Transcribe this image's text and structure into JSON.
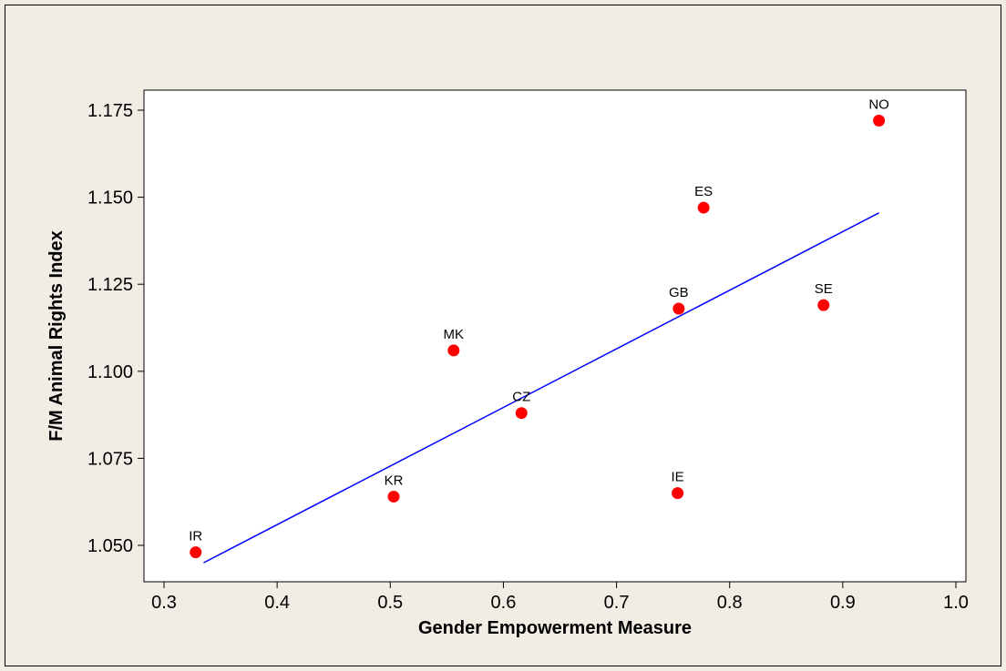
{
  "chart_data": {
    "type": "scatter",
    "title": "",
    "xlabel": "Gender Empowerment Measure",
    "ylabel": "F/M Animal Rights Index",
    "xlim": [
      0.3,
      1.0
    ],
    "ylim": [
      1.04,
      1.18
    ],
    "x_ticks": [
      0.3,
      0.4,
      0.5,
      0.6,
      0.7,
      0.8,
      0.9,
      1.0
    ],
    "x_tick_labels": [
      "0.3",
      "0.4",
      "0.5",
      "0.6",
      "0.7",
      "0.8",
      "0.9",
      "1.0"
    ],
    "y_ticks": [
      1.05,
      1.075,
      1.1,
      1.125,
      1.15,
      1.175
    ],
    "y_tick_labels": [
      "1.050",
      "1.075",
      "1.100",
      "1.125",
      "1.150",
      "1.175"
    ],
    "grid": false,
    "point_color": "#ff0000",
    "line_color": "#0000ff",
    "points": [
      {
        "label": "IR",
        "x": 0.328,
        "y": 1.048
      },
      {
        "label": "KR",
        "x": 0.503,
        "y": 1.064
      },
      {
        "label": "MK",
        "x": 0.556,
        "y": 1.106
      },
      {
        "label": "CZ",
        "x": 0.616,
        "y": 1.088
      },
      {
        "label": "IE",
        "x": 0.754,
        "y": 1.065
      },
      {
        "label": "GB",
        "x": 0.755,
        "y": 1.118
      },
      {
        "label": "ES",
        "x": 0.777,
        "y": 1.147
      },
      {
        "label": "SE",
        "x": 0.883,
        "y": 1.119
      },
      {
        "label": "NO",
        "x": 0.932,
        "y": 1.172
      }
    ],
    "fit_line": {
      "x": [
        0.335,
        0.932
      ],
      "y": [
        1.045,
        1.1455
      ]
    }
  }
}
